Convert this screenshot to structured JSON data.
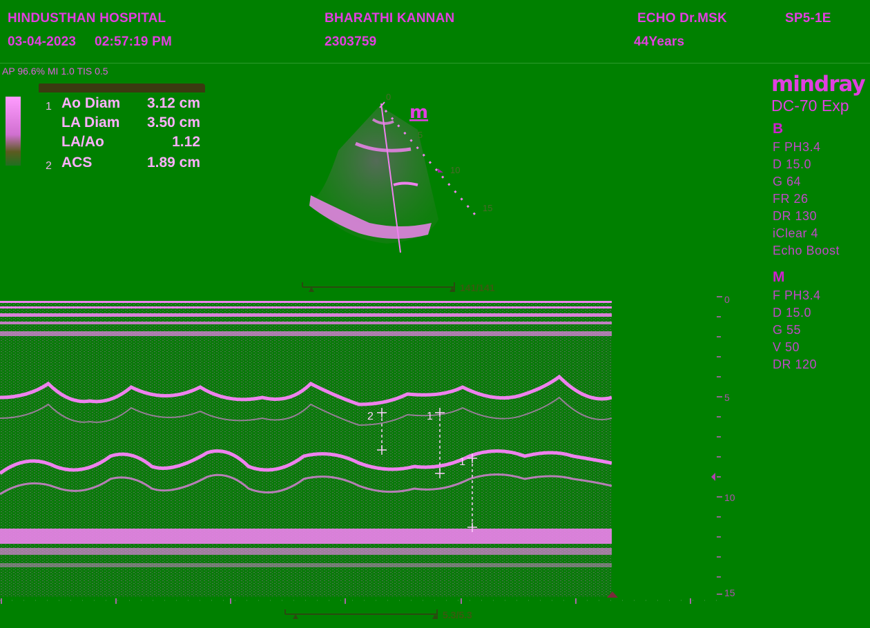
{
  "header": {
    "hospital": "HINDUSTHAN HOSPITAL",
    "date": "03-04-2023",
    "time": "02:57:19 PM",
    "patient_name": "BHARATHI KANNAN",
    "patient_id": "2303759",
    "doctor": "ECHO Dr.MSK",
    "age": "44Years",
    "probe": "SP5-1E"
  },
  "acoustic_output": "AP 96.6%  MI 1.0 TIS 0.5",
  "measurements": [
    {
      "index": "1",
      "label": "Ao Diam",
      "value": "3.12 cm"
    },
    {
      "index": "",
      "label": "LA Diam",
      "value": "3.50 cm"
    },
    {
      "index": "",
      "label": "LA/Ao",
      "value": "1.12"
    },
    {
      "index": "2",
      "label": "ACS",
      "value": "1.89 cm"
    }
  ],
  "brand": {
    "logo": "mindray",
    "model": "DC-70 Exp"
  },
  "b_mode": {
    "heading": "B",
    "params": [
      "F PH3.4",
      "D 15.0",
      "G 64",
      "FR 26",
      "DR 130",
      "iClear 4",
      "Echo Boost"
    ]
  },
  "m_mode": {
    "heading": "M",
    "params": [
      "F PH3.4",
      "D 15.0",
      "G 55",
      "V 50",
      "DR 120"
    ]
  },
  "sector": {
    "mode_icon": "m",
    "depth_labels": [
      "0",
      "5",
      "10",
      "15"
    ]
  },
  "cine_top": "141/141",
  "cine_bottom": "5.3/5.3",
  "depth_scale": {
    "labels": [
      "0",
      "5",
      "10",
      "15"
    ]
  },
  "markers": {
    "caliper_1": "1",
    "caliper_2": "2"
  },
  "colors": {
    "background": "#008000",
    "echo": "#ee82ee",
    "text": "#e23fe0"
  }
}
